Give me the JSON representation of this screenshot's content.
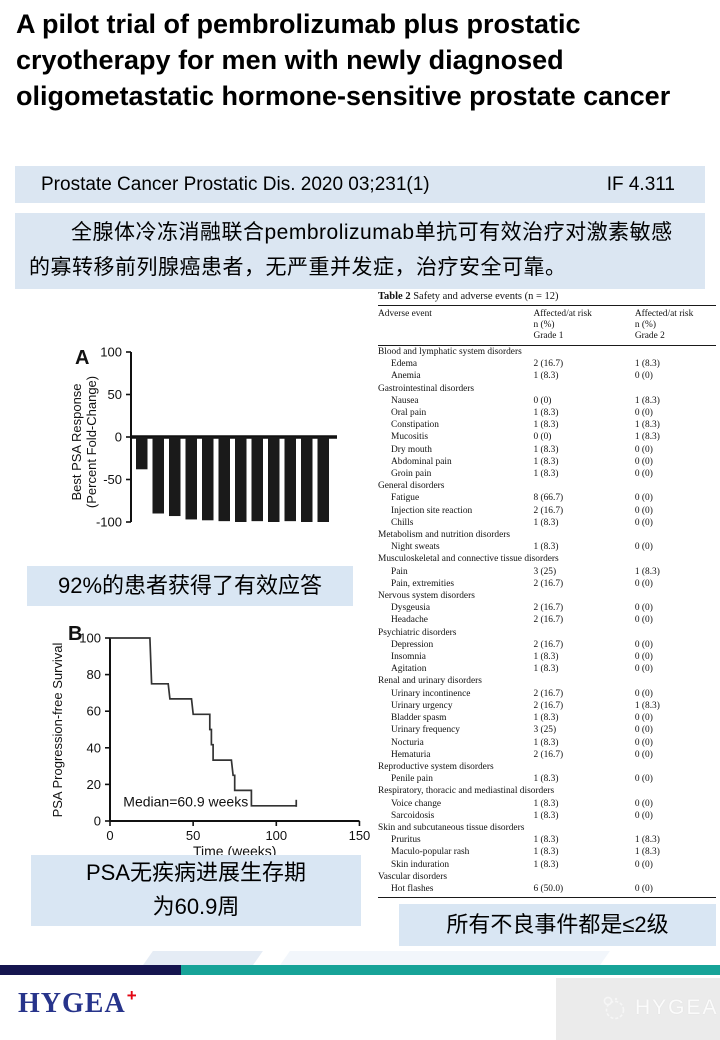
{
  "title": "A pilot trial of pembrolizumab plus prostatic cryotherapy for men with newly diagnosed oligometastatic hormone-sensitive prostate cancer",
  "journal_banner": {
    "citation": "Prostate Cancer Prostatic Dis. 2020 03;231(1)",
    "impact_factor": "IF 4.311"
  },
  "summary_banner": "全腺体冷冻消融联合pembrolizumab单抗可有效治疗对激素敏感的寡转移前列腺癌患者，无严重并发症，治疗安全可靠。",
  "highlights": {
    "response": "92%的患者获得了有效应答",
    "pfs_line1": "PSA无疾病进展生存期",
    "pfs_line2": "为60.9周",
    "safety": "所有不良事件都是≤2级"
  },
  "chart_data": [
    {
      "id": "waterfall",
      "type": "bar",
      "panel_label": "A",
      "ylabel_line1": "Best PSA Response",
      "ylabel_line2": "(Percent Fold-Change)",
      "ylim": [
        -100,
        100
      ],
      "yticks": [
        100,
        50,
        0,
        -50,
        -100
      ],
      "values": [
        -38,
        -90,
        -93,
        -97,
        -98,
        -99,
        -100,
        -99,
        -100,
        -99,
        -100,
        -100
      ],
      "bar_color": "#1a1a1a"
    },
    {
      "id": "km",
      "type": "line",
      "panel_label": "B",
      "ylabel": "PSA Progression-free Survival",
      "xlabel": "Time (weeks)",
      "xlim": [
        0,
        150
      ],
      "ylim": [
        0,
        100
      ],
      "xticks": [
        0,
        50,
        100,
        150
      ],
      "yticks": [
        0,
        20,
        40,
        60,
        80,
        100
      ],
      "annotation": "Median=60.9 weeks",
      "points": [
        [
          0,
          100
        ],
        [
          24,
          100
        ],
        [
          25,
          75
        ],
        [
          35,
          75
        ],
        [
          36,
          66.7
        ],
        [
          49,
          66.7
        ],
        [
          50,
          58.3
        ],
        [
          60,
          58.3
        ],
        [
          60,
          50
        ],
        [
          61,
          50
        ],
        [
          61,
          41.7
        ],
        [
          62,
          41.7
        ],
        [
          62,
          33.3
        ],
        [
          73,
          33.3
        ],
        [
          74,
          25
        ],
        [
          75,
          25
        ],
        [
          75,
          16.7
        ],
        [
          85,
          16.7
        ],
        [
          85,
          8.3
        ],
        [
          112,
          8.3
        ]
      ],
      "censor_x": [
        112
      ],
      "line_color": "#333333"
    }
  ],
  "table": {
    "title_bold": "Table 2",
    "title_rest": " Safety and adverse events (n = 12)",
    "header": {
      "col1": "Adverse event",
      "col2": [
        "Affected/at risk",
        "n (%)",
        "Grade 1"
      ],
      "col3": [
        "Affected/at risk",
        "n (%)",
        "Grade 2"
      ]
    },
    "rows": [
      {
        "t": "cat",
        "label": "Blood and lymphatic system disorders"
      },
      {
        "t": "item",
        "label": "Edema",
        "g1": "2 (16.7)",
        "g2": "1 (8.3)"
      },
      {
        "t": "item",
        "label": "Anemia",
        "g1": "1 (8.3)",
        "g2": "0 (0)"
      },
      {
        "t": "cat",
        "label": "Gastrointestinal disorders"
      },
      {
        "t": "item",
        "label": "Nausea",
        "g1": "0 (0)",
        "g2": "1 (8.3)"
      },
      {
        "t": "item",
        "label": "Oral pain",
        "g1": "1 (8.3)",
        "g2": "0 (0)"
      },
      {
        "t": "item",
        "label": "Constipation",
        "g1": "1 (8.3)",
        "g2": "1 (8.3)"
      },
      {
        "t": "item",
        "label": "Mucositis",
        "g1": "0 (0)",
        "g2": "1 (8.3)"
      },
      {
        "t": "item",
        "label": "Dry mouth",
        "g1": "1 (8.3)",
        "g2": "0 (0)"
      },
      {
        "t": "item",
        "label": "Abdominal pain",
        "g1": "1 (8.3)",
        "g2": "0 (0)"
      },
      {
        "t": "item",
        "label": "Groin pain",
        "g1": "1 (8.3)",
        "g2": "0 (0)"
      },
      {
        "t": "cat",
        "label": "General disorders"
      },
      {
        "t": "item",
        "label": "Fatigue",
        "g1": "8 (66.7)",
        "g2": "0 (0)"
      },
      {
        "t": "item",
        "label": "Injection site reaction",
        "g1": "2 (16.7)",
        "g2": "0 (0)"
      },
      {
        "t": "item",
        "label": "Chills",
        "g1": "1 (8.3)",
        "g2": "0 (0)"
      },
      {
        "t": "cat",
        "label": "Metabolism and nutrition disorders"
      },
      {
        "t": "item",
        "label": "Night sweats",
        "g1": "1 (8.3)",
        "g2": "0 (0)"
      },
      {
        "t": "cat",
        "label": "Musculoskeletal and connective tissue disorders"
      },
      {
        "t": "item",
        "label": "Pain",
        "g1": "3 (25)",
        "g2": "1 (8.3)"
      },
      {
        "t": "item",
        "label": "Pain, extremities",
        "g1": "2 (16.7)",
        "g2": "0 (0)"
      },
      {
        "t": "cat",
        "label": "Nervous system disorders"
      },
      {
        "t": "item",
        "label": "Dysgeusia",
        "g1": "2 (16.7)",
        "g2": "0 (0)"
      },
      {
        "t": "item",
        "label": "Headache",
        "g1": "2 (16.7)",
        "g2": "0 (0)"
      },
      {
        "t": "cat",
        "label": "Psychiatric disorders"
      },
      {
        "t": "item",
        "label": "Depression",
        "g1": "2 (16.7)",
        "g2": "0 (0)"
      },
      {
        "t": "item",
        "label": "Insomnia",
        "g1": "1 (8.3)",
        "g2": "0 (0)"
      },
      {
        "t": "item",
        "label": "Agitation",
        "g1": "1 (8.3)",
        "g2": "0 (0)"
      },
      {
        "t": "cat",
        "label": "Renal and urinary disorders"
      },
      {
        "t": "item",
        "label": "Urinary incontinence",
        "g1": "2 (16.7)",
        "g2": "0 (0)"
      },
      {
        "t": "item",
        "label": "Urinary urgency",
        "g1": "2 (16.7)",
        "g2": "1 (8.3)"
      },
      {
        "t": "item",
        "label": "Bladder spasm",
        "g1": "1 (8.3)",
        "g2": "0 (0)"
      },
      {
        "t": "item",
        "label": "Urinary frequency",
        "g1": "3 (25)",
        "g2": "0 (0)"
      },
      {
        "t": "item",
        "label": "Nocturia",
        "g1": "1 (8.3)",
        "g2": "0 (0)"
      },
      {
        "t": "item",
        "label": "Hematuria",
        "g1": "2 (16.7)",
        "g2": "0 (0)"
      },
      {
        "t": "cat",
        "label": "Reproductive system disorders"
      },
      {
        "t": "item",
        "label": "Penile pain",
        "g1": "1 (8.3)",
        "g2": "0 (0)"
      },
      {
        "t": "cat",
        "label": "Respiratory, thoracic and mediastinal disorders"
      },
      {
        "t": "item",
        "label": "Voice change",
        "g1": "1 (8.3)",
        "g2": "0 (0)"
      },
      {
        "t": "item",
        "label": "Sarcoidosis",
        "g1": "1 (8.3)",
        "g2": "0 (0)"
      },
      {
        "t": "cat",
        "label": "Skin and subcutaneous tissue disorders"
      },
      {
        "t": "item",
        "label": "Pruritus",
        "g1": "1 (8.3)",
        "g2": "1 (8.3)"
      },
      {
        "t": "item",
        "label": "Maculo-popular rash",
        "g1": "1 (8.3)",
        "g2": "1 (8.3)"
      },
      {
        "t": "item",
        "label": "Skin induration",
        "g1": "1 (8.3)",
        "g2": "0 (0)"
      },
      {
        "t": "cat",
        "label": "Vascular disorders"
      },
      {
        "t": "item",
        "label": "Hot flashes",
        "g1": "6 (50.0)",
        "g2": "0 (0)"
      }
    ]
  },
  "footer": {
    "logo_text": "HYGEA",
    "logo_mark": "+",
    "watermark_text": "HYGEA"
  },
  "colors": {
    "banner_bg": "#dbe6f2",
    "highlight_bg": "#d9e6f3",
    "navy_bar": "#15154f",
    "teal_bar": "#17a398",
    "logo_navy": "#27348b",
    "logo_red": "#e30613"
  }
}
